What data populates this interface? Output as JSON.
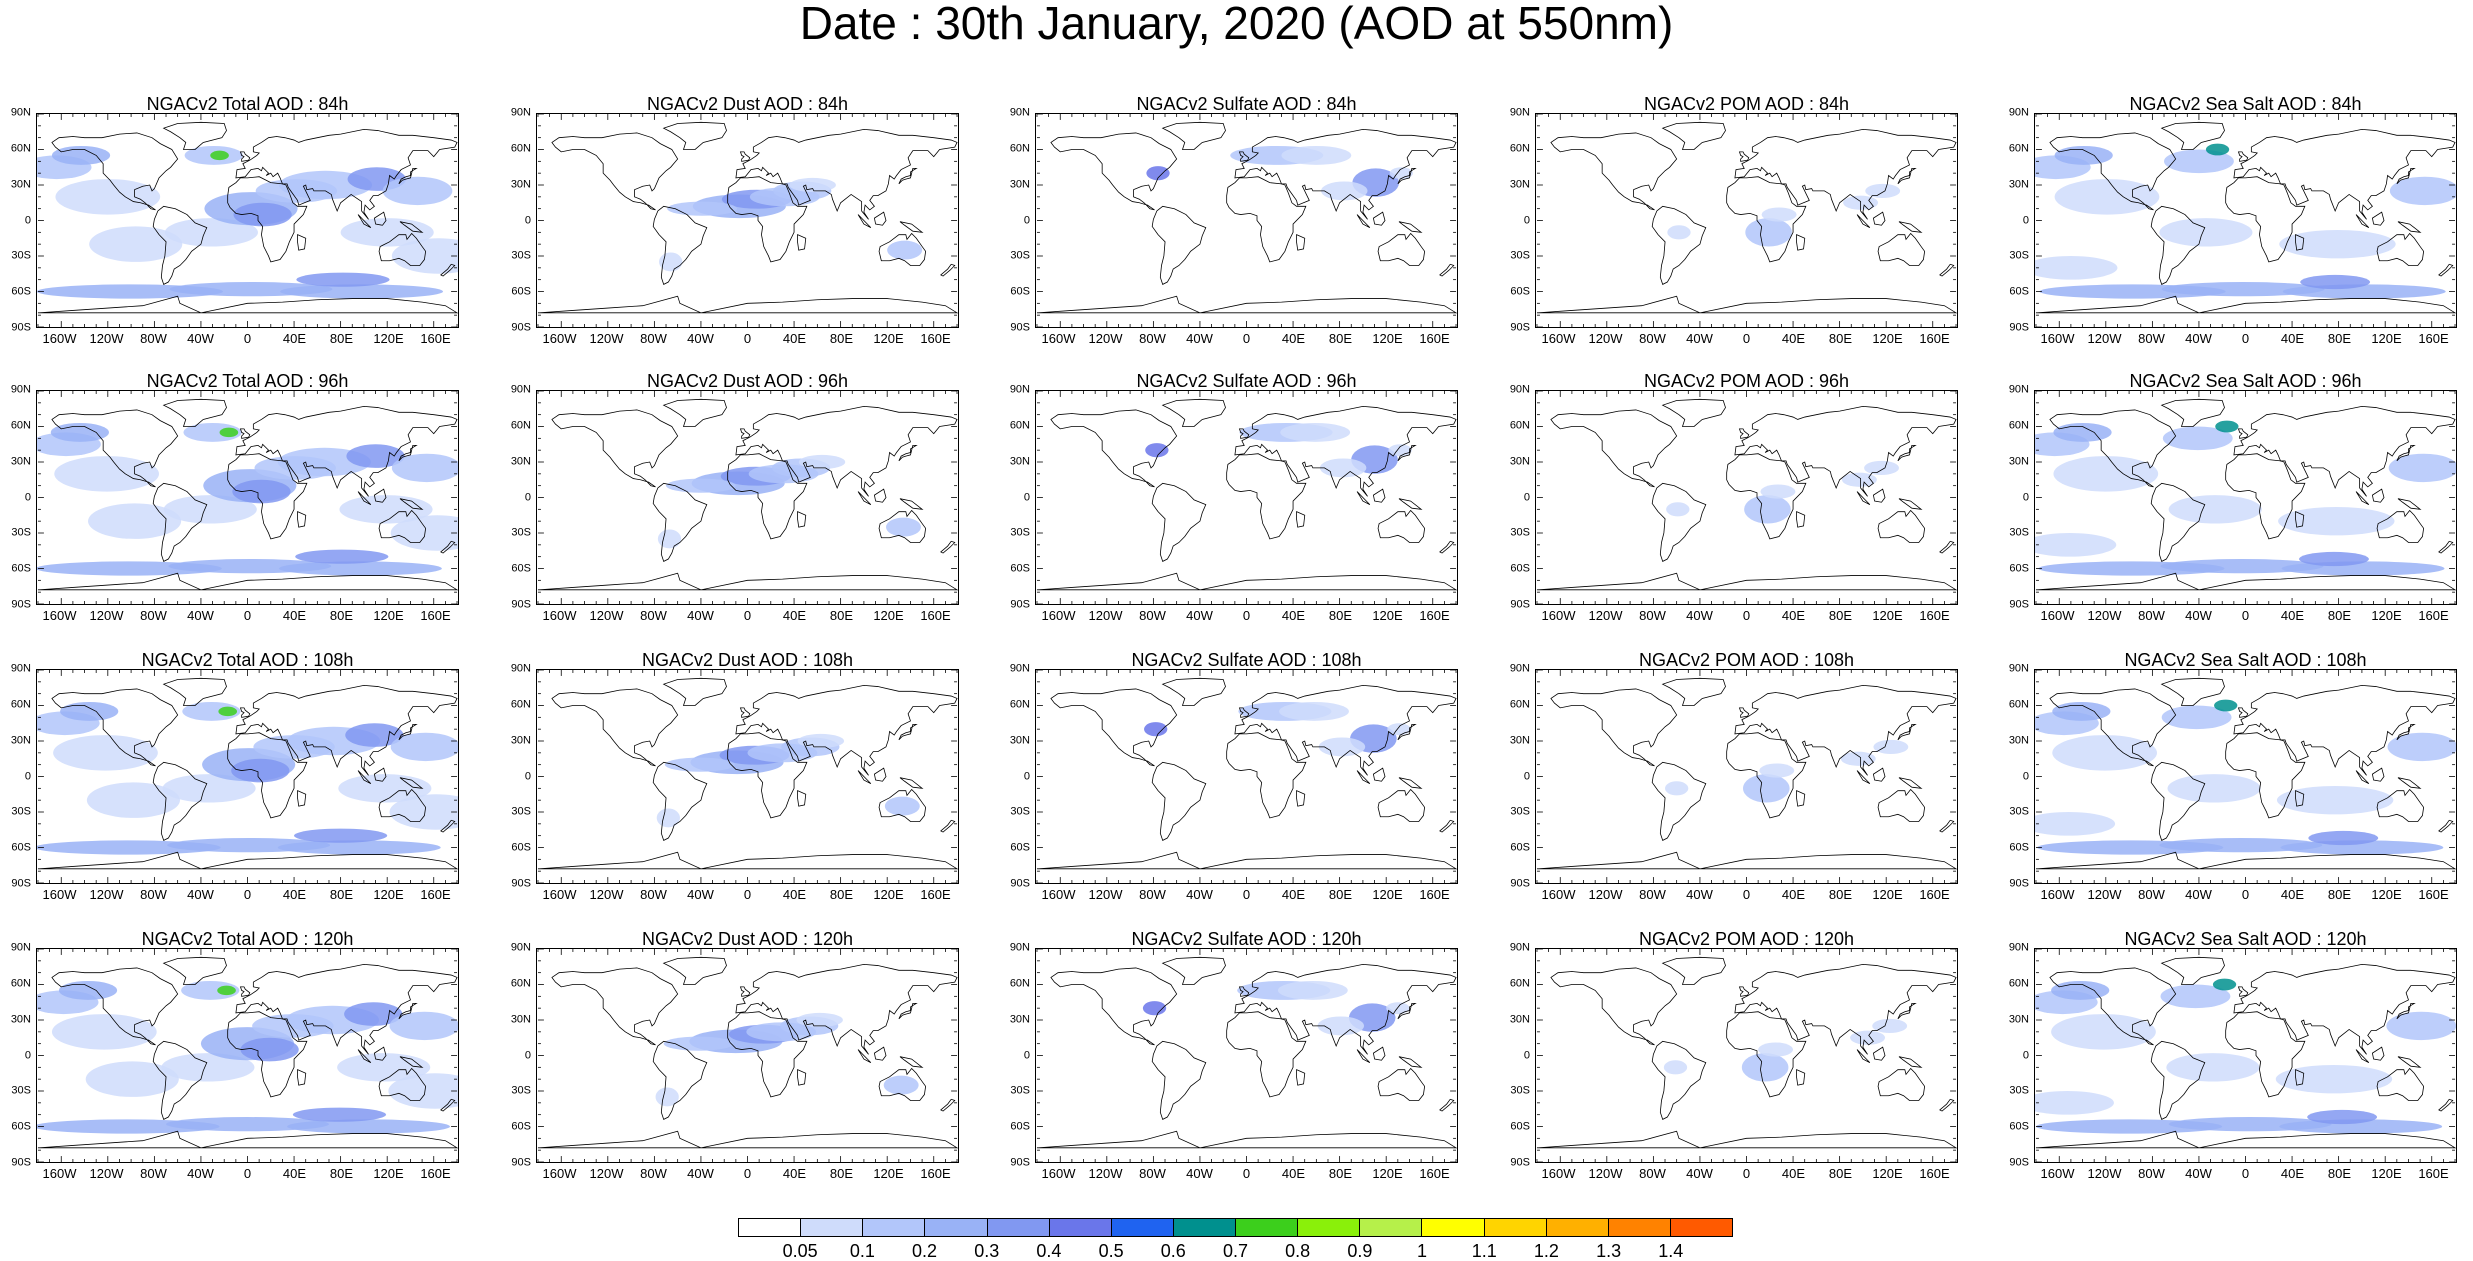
{
  "title": "Date : 30th January, 2020 (AOD at 550nm)",
  "lat_ticks": [
    "90N",
    "60N",
    "30N",
    "0",
    "30S",
    "60S",
    "90S"
  ],
  "lon_ticks": [
    "160W",
    "120W",
    "80W",
    "40W",
    "0",
    "40E",
    "80E",
    "120E",
    "160E"
  ],
  "panels": [
    {
      "title": "NGACv2 Total AOD : 84h",
      "field": "total"
    },
    {
      "title": "NGACv2 Dust AOD : 84h",
      "field": "dust"
    },
    {
      "title": "NGACv2 Sulfate AOD : 84h",
      "field": "sulfate"
    },
    {
      "title": "NGACv2 POM AOD : 84h",
      "field": "pom"
    },
    {
      "title": "NGACv2 Sea Salt AOD : 84h",
      "field": "seasalt"
    },
    {
      "title": "NGACv2 Total AOD : 96h",
      "field": "total"
    },
    {
      "title": "NGACv2 Dust AOD : 96h",
      "field": "dust"
    },
    {
      "title": "NGACv2 Sulfate AOD : 96h",
      "field": "sulfate"
    },
    {
      "title": "NGACv2 POM AOD : 96h",
      "field": "pom"
    },
    {
      "title": "NGACv2 Sea Salt AOD : 96h",
      "field": "seasalt"
    },
    {
      "title": "NGACv2 Total AOD : 108h",
      "field": "total"
    },
    {
      "title": "NGACv2 Dust AOD : 108h",
      "field": "dust"
    },
    {
      "title": "NGACv2 Sulfate AOD : 108h",
      "field": "sulfate"
    },
    {
      "title": "NGACv2 POM AOD : 108h",
      "field": "pom"
    },
    {
      "title": "NGACv2 Sea Salt AOD : 108h",
      "field": "seasalt"
    },
    {
      "title": "NGACv2 Total AOD : 120h",
      "field": "total"
    },
    {
      "title": "NGACv2 Dust AOD : 120h",
      "field": "dust"
    },
    {
      "title": "NGACv2 Sulfate AOD : 120h",
      "field": "sulfate"
    },
    {
      "title": "NGACv2 POM AOD : 120h",
      "field": "pom"
    },
    {
      "title": "NGACv2 Sea Salt  AOD : 120h",
      "field": "seasalt"
    }
  ],
  "colorbar": {
    "colors": [
      "#ffffff",
      "#cfdcfb",
      "#b2c6fa",
      "#99b2f6",
      "#8198f1",
      "#6a76ea",
      "#1f63f0",
      "#00908e",
      "#3ccf1c",
      "#8af00a",
      "#b6f04a",
      "#ffff00",
      "#ffd400",
      "#ffb000",
      "#ff8200",
      "#ff5a00",
      "#ff2300"
    ],
    "labels": [
      "0.05",
      "0.1",
      "0.2",
      "0.3",
      "0.4",
      "0.5",
      "0.6",
      "0.7",
      "0.8",
      "0.9",
      "1",
      "1.1",
      "1.2",
      "1.3",
      "1.4"
    ]
  }
}
